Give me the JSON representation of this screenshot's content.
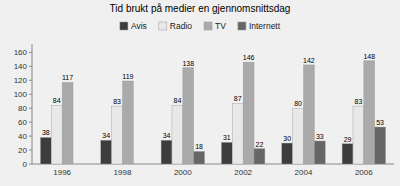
{
  "chart_data": {
    "type": "bar",
    "title": "Tid brukt på medier en gjennomsnittsdag",
    "categories": [
      "1996",
      "1998",
      "2000",
      "2002",
      "2004",
      "2006"
    ],
    "series": [
      {
        "name": "Avis",
        "color": "#3d3d3d",
        "values": [
          38,
          34,
          34,
          31,
          30,
          29
        ]
      },
      {
        "name": "Radio",
        "color": "#e8e8e8",
        "values": [
          84,
          83,
          84,
          87,
          80,
          83
        ]
      },
      {
        "name": "TV",
        "color": "#aaaaaa",
        "values": [
          117,
          119,
          138,
          146,
          142,
          148
        ]
      },
      {
        "name": "Internett",
        "color": "#666666",
        "values": [
          0,
          0,
          18,
          22,
          33,
          53
        ],
        "value_labels": [
          null,
          null,
          "18",
          "22",
          "33",
          "53"
        ]
      }
    ],
    "ylim": [
      0,
      172
    ],
    "yticks": [
      0,
      20,
      40,
      60,
      80,
      100,
      120,
      140,
      160
    ],
    "grid": false,
    "legend": "top",
    "data_labels": true
  }
}
